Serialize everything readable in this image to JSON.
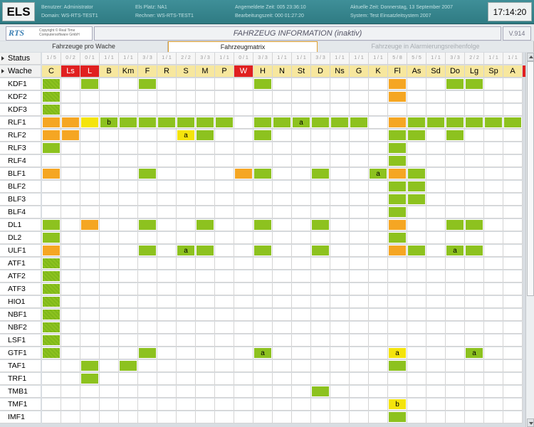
{
  "app": {
    "name": "ELS",
    "clock": "17:14:20",
    "version": "V.914",
    "title": "FAHRZEUG INFORMATION  (inaktiv)"
  },
  "info": [
    "Benutzer: Administrator",
    "Domain: WS-RTS-TEST1",
    "Els Platz: NA1",
    "Rechner: WS-RTS-TEST1",
    "Angemeldete Zeit: 005 23:36:10",
    "Bearbeitungszeit: 000 01:27:20",
    "Aktuelle Zeit: Donnerstag, 13 September 2007",
    "System: Test Einsatzleitsystem 2007"
  ],
  "logo": {
    "brand": "RTS",
    "copyright_line1": "Copyright © Real Time",
    "copyright_line2": "Computersoftware GmbH"
  },
  "tabs": [
    {
      "label": "Fahrzeuge pro Wache",
      "state": "normal"
    },
    {
      "label": "Fahrzeugmatrix",
      "state": "active"
    },
    {
      "label": "Fahrzeuge in Alarmierungsreihenfolge",
      "state": "disabled"
    }
  ],
  "matrix": {
    "status_label": "Status",
    "wache_label": "Wache",
    "columns": [
      {
        "status": "1/5",
        "wache": "C",
        "color": "#f7e79e"
      },
      {
        "status": "0/2",
        "wache": "Ls",
        "color": "#e02020"
      },
      {
        "status": "0/1",
        "wache": "L",
        "color": "#e02020"
      },
      {
        "status": "1/1",
        "wache": "B",
        "color": "#f7e79e"
      },
      {
        "status": "1/1",
        "wache": "Km",
        "color": "#f7e79e"
      },
      {
        "status": "3/3",
        "wache": "F",
        "color": "#f7e79e"
      },
      {
        "status": "1/1",
        "wache": "R",
        "color": "#f7e79e"
      },
      {
        "status": "2/2",
        "wache": "S",
        "color": "#f7e79e"
      },
      {
        "status": "3/3",
        "wache": "M",
        "color": "#f7e79e"
      },
      {
        "status": "1/1",
        "wache": "P",
        "color": "#f7e79e"
      },
      {
        "status": "0/1",
        "wache": "W",
        "color": "#e02020"
      },
      {
        "status": "3/3",
        "wache": "H",
        "color": "#f7e79e"
      },
      {
        "status": "1/1",
        "wache": "N",
        "color": "#f7e79e"
      },
      {
        "status": "1/1",
        "wache": "St",
        "color": "#f7e79e"
      },
      {
        "status": "3/3",
        "wache": "D",
        "color": "#f7e79e"
      },
      {
        "status": "1/1",
        "wache": "Ns",
        "color": "#f7e79e"
      },
      {
        "status": "1/1",
        "wache": "G",
        "color": "#f7e79e"
      },
      {
        "status": "1/1",
        "wache": "K",
        "color": "#f7e79e"
      },
      {
        "status": "5/8",
        "wache": "Fl",
        "color": "#f7e79e"
      },
      {
        "status": "5/5",
        "wache": "As",
        "color": "#f7e79e"
      },
      {
        "status": "1/1",
        "wache": "Sd",
        "color": "#f7e79e"
      },
      {
        "status": "3/3",
        "wache": "Do",
        "color": "#f7e79e"
      },
      {
        "status": "2/2",
        "wache": "Lg",
        "color": "#f7e79e"
      },
      {
        "status": "1/1",
        "wache": "Sp",
        "color": "#f7e79e"
      },
      {
        "status": "1/1",
        "wache": "A",
        "color": "#f7e79e"
      }
    ],
    "colors": {
      "green": "#8dc21f",
      "orange": "#f5a623",
      "yellow": "#f4e40c",
      "hatch": "#7fb81a"
    },
    "rows": [
      {
        "label": "KDF1",
        "cells": {
          "0": "h",
          "2": "g",
          "5": "g",
          "11": "g",
          "18": "o",
          "21": "g",
          "22": "g"
        }
      },
      {
        "label": "KDF2",
        "cells": {
          "0": "h",
          "18": "o"
        }
      },
      {
        "label": "KDF3",
        "cells": {
          "0": "h"
        }
      },
      {
        "label": "RLF1",
        "cells": {
          "0": "o",
          "1": "o",
          "2": "y",
          "3": "g:b",
          "4": "g",
          "5": "g",
          "6": "g",
          "7": "g",
          "8": "g",
          "9": "g",
          "11": "g",
          "12": "g",
          "13": "g:a",
          "14": "g",
          "15": "g",
          "16": "g",
          "18": "o",
          "19": "g",
          "20": "g",
          "21": "g",
          "22": "g",
          "23": "g",
          "24": "g"
        }
      },
      {
        "label": "RLF2",
        "cells": {
          "0": "o",
          "1": "o",
          "7": "y:a",
          "8": "g",
          "11": "g",
          "18": "g",
          "19": "g",
          "21": "g"
        }
      },
      {
        "label": "RLF3",
        "cells": {
          "0": "g",
          "18": "g"
        }
      },
      {
        "label": "RLF4",
        "cells": {
          "18": "g"
        }
      },
      {
        "label": "BLF1",
        "cells": {
          "0": "o",
          "5": "g",
          "10": "o",
          "11": "g",
          "14": "g",
          "17": "g:a",
          "18": "o",
          "19": "g"
        }
      },
      {
        "label": "BLF2",
        "cells": {
          "18": "g",
          "19": "g"
        }
      },
      {
        "label": "BLF3",
        "cells": {
          "18": "g",
          "19": "g"
        }
      },
      {
        "label": "BLF4",
        "cells": {
          "18": "g"
        }
      },
      {
        "label": "DL1",
        "cells": {
          "0": "g",
          "2": "o",
          "5": "g",
          "8": "g",
          "11": "g",
          "14": "g",
          "18": "o",
          "21": "g",
          "22": "g"
        }
      },
      {
        "label": "DL2",
        "cells": {
          "0": "g",
          "18": "g"
        }
      },
      {
        "label": "ULF1",
        "cells": {
          "0": "o",
          "5": "g",
          "7": "g:a",
          "8": "g",
          "11": "g",
          "14": "g",
          "18": "o",
          "19": "g",
          "21": "g:a",
          "22": "g"
        }
      },
      {
        "label": "ATF1",
        "cells": {
          "0": "h"
        }
      },
      {
        "label": "ATF2",
        "cells": {
          "0": "h"
        }
      },
      {
        "label": "ATF3",
        "cells": {
          "0": "h"
        }
      },
      {
        "label": "HIO1",
        "cells": {
          "0": "h"
        }
      },
      {
        "label": "NBF1",
        "cells": {
          "0": "h"
        }
      },
      {
        "label": "NBF2",
        "cells": {
          "0": "h"
        }
      },
      {
        "label": "LSF1",
        "cells": {
          "0": "h"
        }
      },
      {
        "label": "GTF1",
        "cells": {
          "0": "h",
          "5": "g",
          "11": "g:a",
          "18": "y:a",
          "22": "g:a"
        }
      },
      {
        "label": "TAF1",
        "cells": {
          "2": "g",
          "4": "g",
          "18": "g"
        }
      },
      {
        "label": "TRF1",
        "cells": {
          "2": "g"
        }
      },
      {
        "label": "TMB1",
        "cells": {
          "14": "g"
        }
      },
      {
        "label": "TMF1",
        "cells": {
          "18": "y:b"
        }
      },
      {
        "label": "IMF1",
        "cells": {
          "18": "g"
        }
      }
    ]
  }
}
